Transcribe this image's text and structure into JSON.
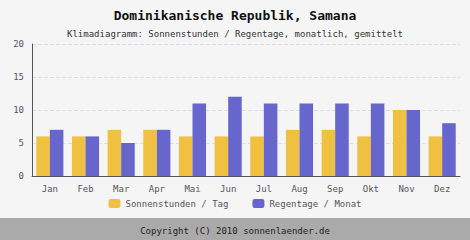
{
  "chart_data": {
    "type": "bar",
    "title": "Dominikanische Republik, Samana",
    "subtitle": "Klimadiagramm: Sonnenstunden / Regentage, monatlich, gemittelt",
    "annotations": [
      "Copyright (C) 2010 sonnenlaender.de"
    ],
    "categories": [
      "Jan",
      "Feb",
      "Mar",
      "Apr",
      "Mai",
      "Jun",
      "Jul",
      "Aug",
      "Sep",
      "Okt",
      "Nov",
      "Dez"
    ],
    "series": [
      {
        "name": "Sonnenstunden / Tag",
        "color": "#f0c040",
        "values": [
          6,
          6,
          7,
          7,
          6,
          6,
          6,
          7,
          7,
          6,
          10,
          6
        ]
      },
      {
        "name": "Regentage / Monat",
        "color": "#6666cc",
        "values": [
          7,
          6,
          5,
          7,
          11,
          12,
          11,
          11,
          11,
          11,
          10,
          8
        ]
      }
    ],
    "ylim": [
      0,
      20
    ],
    "yticks": [
      0,
      5,
      10,
      15,
      20
    ],
    "grid": true,
    "legend": "bottom"
  }
}
